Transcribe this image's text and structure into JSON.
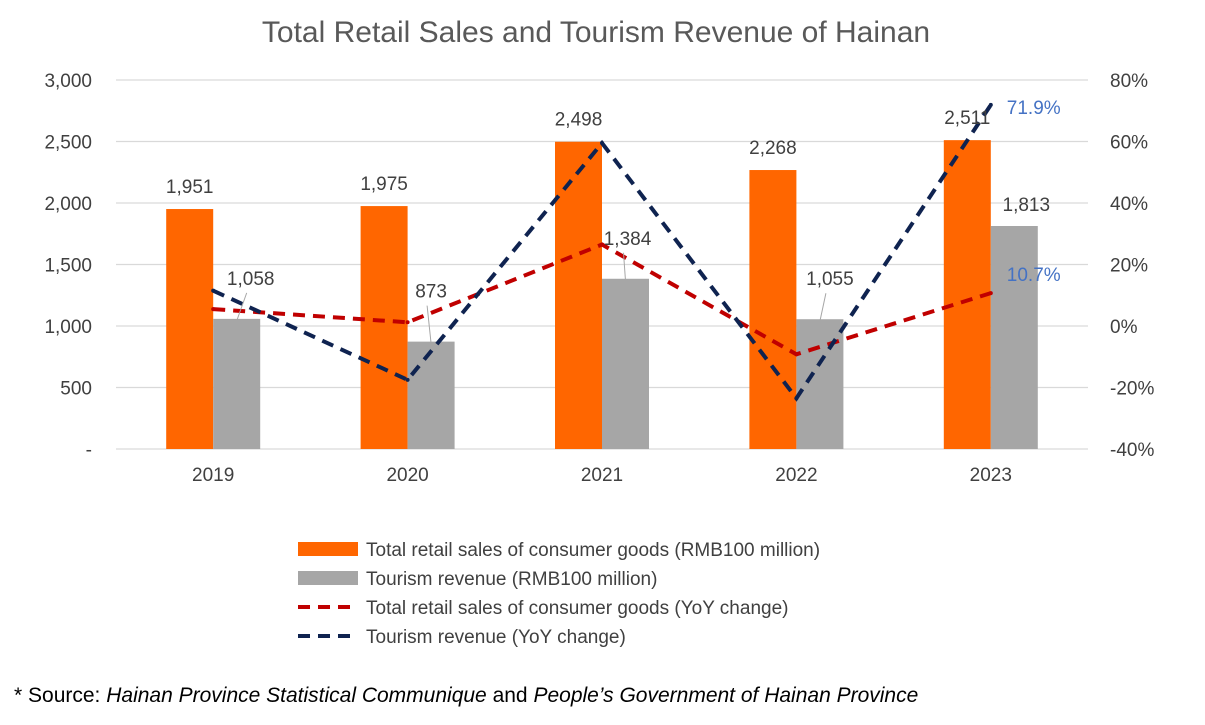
{
  "chart_data": {
    "type": "bar",
    "title": "Total Retail Sales and Tourism Revenue of Hainan",
    "categories": [
      "2019",
      "2020",
      "2021",
      "2022",
      "2023"
    ],
    "series": [
      {
        "name": "Total retail sales of consumer goods  (RMB100 million)",
        "kind": "bar",
        "axis": "left",
        "values": [
          1951,
          1975,
          2498,
          2268,
          2511
        ],
        "labels": [
          "1,951",
          "1,975",
          "2,498",
          "2,268",
          "2,511"
        ],
        "color": "#FF6600"
      },
      {
        "name": "Tourism revenue   (RMB100 million)",
        "kind": "bar",
        "axis": "left",
        "values": [
          1058,
          873,
          1384,
          1055,
          1813
        ],
        "labels": [
          "1,058",
          "873",
          "1,384",
          "1,055",
          "1,813"
        ],
        "color": "#A6A6A6"
      },
      {
        "name": "Total retail sales of consumer goods (YoY change)",
        "kind": "line",
        "style": "dashed",
        "axis": "right",
        "values": [
          5.5,
          1.2,
          26.5,
          -9.2,
          10.7
        ],
        "labels": [
          "",
          "",
          "",
          "",
          "10.7%"
        ],
        "color": "#C00000"
      },
      {
        "name": "Tourism revenue (YoY change)",
        "kind": "line",
        "style": "dashed",
        "axis": "right",
        "values": [
          11.5,
          -17.5,
          59.5,
          -23.5,
          71.9
        ],
        "labels": [
          "",
          "",
          "",
          "",
          "71.9%"
        ],
        "color": "#0F2350"
      }
    ],
    "y_left": {
      "ylim": [
        0,
        3000
      ],
      "ticks": [
        0,
        500,
        1000,
        1500,
        2000,
        2500,
        3000
      ],
      "tick_labels": [
        "-",
        "500",
        "1,000",
        "1,500",
        "2,000",
        "2,500",
        "3,000"
      ]
    },
    "y_right": {
      "ylim": [
        -40,
        80
      ],
      "ticks": [
        -40,
        -20,
        0,
        20,
        40,
        60,
        80
      ],
      "tick_labels": [
        "-40%",
        "-20%",
        "0%",
        "20%",
        "40%",
        "60%",
        "80%"
      ]
    },
    "grid": true,
    "legend_position": "bottom",
    "line_label_color": "#4472C4",
    "grid_color": "#D9D9D9"
  },
  "source": {
    "prefix": "* Source: ",
    "name1": "Hainan Province Statistical Communique",
    "joiner": " and ",
    "name2": "People’s Government of Hainan Province"
  }
}
